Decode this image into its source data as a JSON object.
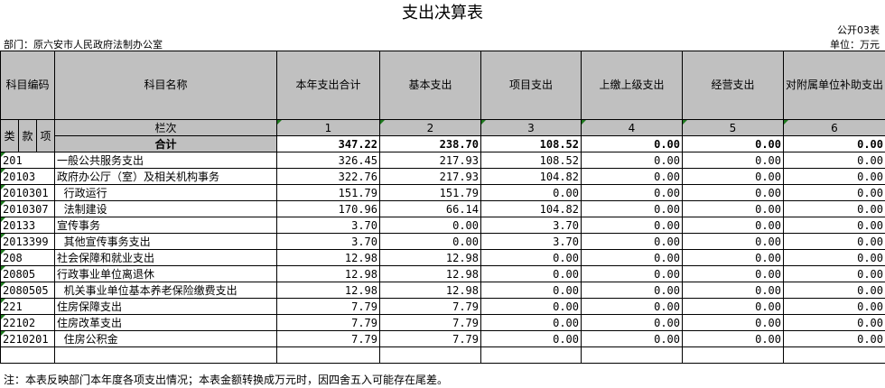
{
  "header": {
    "title": "支出决算表",
    "sheet_code": "公开03表",
    "department": "部门：原六安市人民政府法制办公室",
    "unit": "单位：万元"
  },
  "columns": {
    "subject_code": "科目编码",
    "subject_name": "科目名称",
    "total": "本年支出合计",
    "basic": "基本支出",
    "project": "项目支出",
    "upper": "上缴上级支出",
    "business": "经营支出",
    "subsidy": "对附属单位补助支出",
    "lei": "类",
    "kuan": "款",
    "xiang": "项",
    "lanci": "栏次",
    "idx": [
      "1",
      "2",
      "3",
      "4",
      "5",
      "6"
    ]
  },
  "total_row": {
    "label": "合计",
    "values": [
      "347.22",
      "238.70",
      "108.52",
      "0.00",
      "0.00",
      "0.00"
    ]
  },
  "rows": [
    {
      "code": "201",
      "name": "一般公共服务支出",
      "values": [
        "326.45",
        "217.93",
        "108.52",
        "0.00",
        "0.00",
        "0.00"
      ]
    },
    {
      "code": "20103",
      "name": "政府办公厅（室）及相关机构事务",
      "values": [
        "322.76",
        "217.93",
        "104.82",
        "0.00",
        "0.00",
        "0.00"
      ]
    },
    {
      "code": "2010301",
      "name": "  行政运行",
      "values": [
        "151.79",
        "151.79",
        "0.00",
        "0.00",
        "0.00",
        "0.00"
      ]
    },
    {
      "code": "2010307",
      "name": "  法制建设",
      "values": [
        "170.96",
        "66.14",
        "104.82",
        "0.00",
        "0.00",
        "0.00"
      ]
    },
    {
      "code": "20133",
      "name": "宣传事务",
      "values": [
        "3.70",
        "0.00",
        "3.70",
        "0.00",
        "0.00",
        "0.00"
      ]
    },
    {
      "code": "2013399",
      "name": "  其他宣传事务支出",
      "values": [
        "3.70",
        "0.00",
        "3.70",
        "0.00",
        "0.00",
        "0.00"
      ]
    },
    {
      "code": "208",
      "name": "社会保障和就业支出",
      "values": [
        "12.98",
        "12.98",
        "0.00",
        "0.00",
        "0.00",
        "0.00"
      ]
    },
    {
      "code": "20805",
      "name": "行政事业单位离退休",
      "values": [
        "12.98",
        "12.98",
        "0.00",
        "0.00",
        "0.00",
        "0.00"
      ]
    },
    {
      "code": "2080505",
      "name": "  机关事业单位基本养老保险缴费支出",
      "values": [
        "12.98",
        "12.98",
        "0.00",
        "0.00",
        "0.00",
        "0.00"
      ]
    },
    {
      "code": "221",
      "name": "住房保障支出",
      "values": [
        "7.79",
        "7.79",
        "0.00",
        "0.00",
        "0.00",
        "0.00"
      ]
    },
    {
      "code": "22102",
      "name": "住房改革支出",
      "values": [
        "7.79",
        "7.79",
        "0.00",
        "0.00",
        "0.00",
        "0.00"
      ]
    },
    {
      "code": "2210201",
      "name": "  住房公积金",
      "values": [
        "7.79",
        "7.79",
        "0.00",
        "0.00",
        "0.00",
        "0.00"
      ]
    }
  ],
  "note": "注：本表反映部门本年度各项支出情况；本表金额转换成万元时，因四舍五入可能存在尾差。",
  "colors": {
    "header_bg": "#c0c0c0",
    "marker": "#1f7a1f"
  }
}
